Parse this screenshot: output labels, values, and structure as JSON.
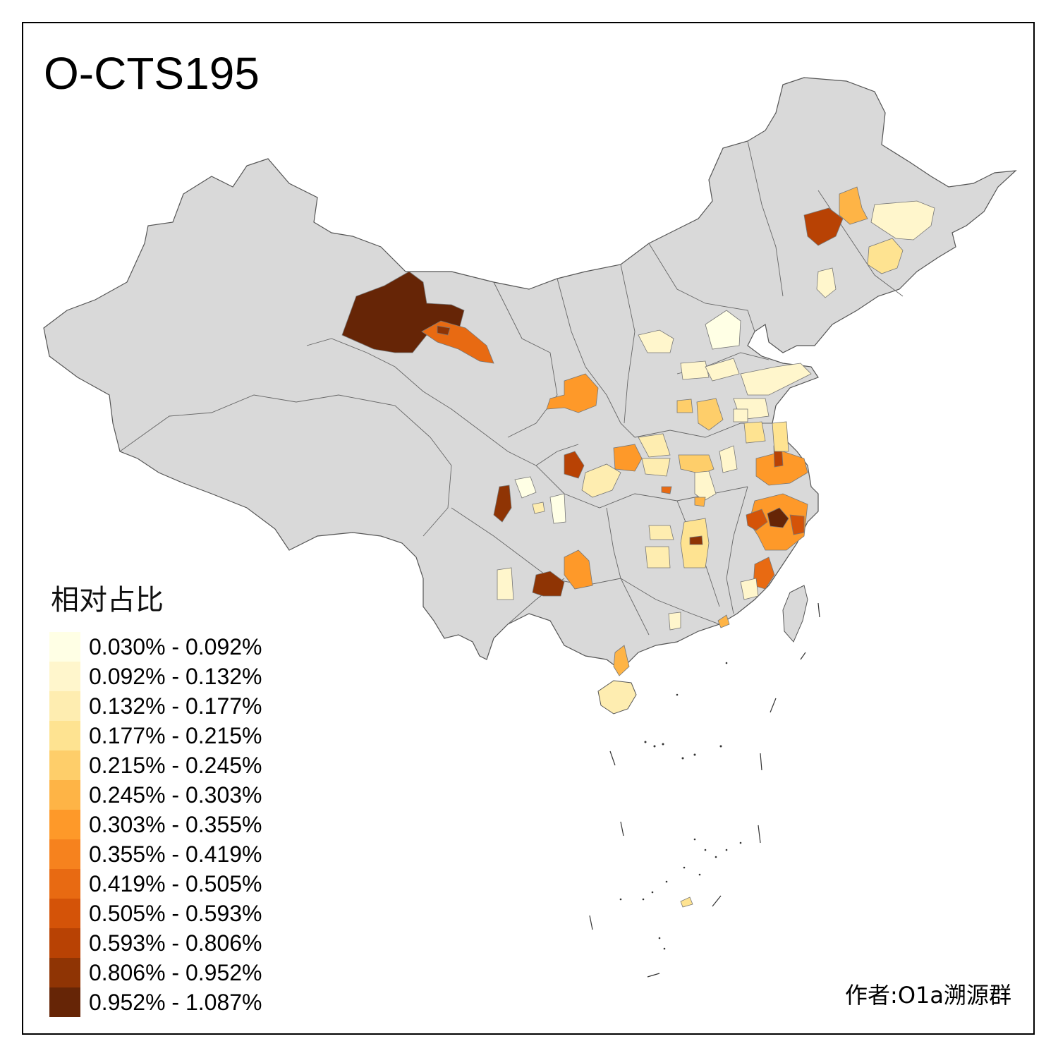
{
  "map": {
    "title": "O-CTS195",
    "author": "作者:O1a溯源群"
  },
  "legend": {
    "title": "相对占比",
    "classes": [
      {
        "label": "0.030% - 0.092%",
        "color": "#ffffe5"
      },
      {
        "label": "0.092% - 0.132%",
        "color": "#fff6cc"
      },
      {
        "label": "0.132% - 0.177%",
        "color": "#feedb0"
      },
      {
        "label": "0.177% - 0.215%",
        "color": "#fee391"
      },
      {
        "label": "0.215% - 0.245%",
        "color": "#fece6a"
      },
      {
        "label": "0.245% - 0.303%",
        "color": "#feb446"
      },
      {
        "label": "0.303% - 0.355%",
        "color": "#fe9929"
      },
      {
        "label": "0.355% - 0.419%",
        "color": "#f6821e"
      },
      {
        "label": "0.419% - 0.505%",
        "color": "#e86a12"
      },
      {
        "label": "0.505% - 0.593%",
        "color": "#d45308"
      },
      {
        "label": "0.593% - 0.806%",
        "color": "#b84204"
      },
      {
        "label": "0.806% - 0.952%",
        "color": "#8f3404"
      },
      {
        "label": "0.952% - 1.087%",
        "color": "#662506"
      }
    ]
  },
  "colors": {
    "base_land": "#d9d9d9",
    "border": "#555555"
  }
}
